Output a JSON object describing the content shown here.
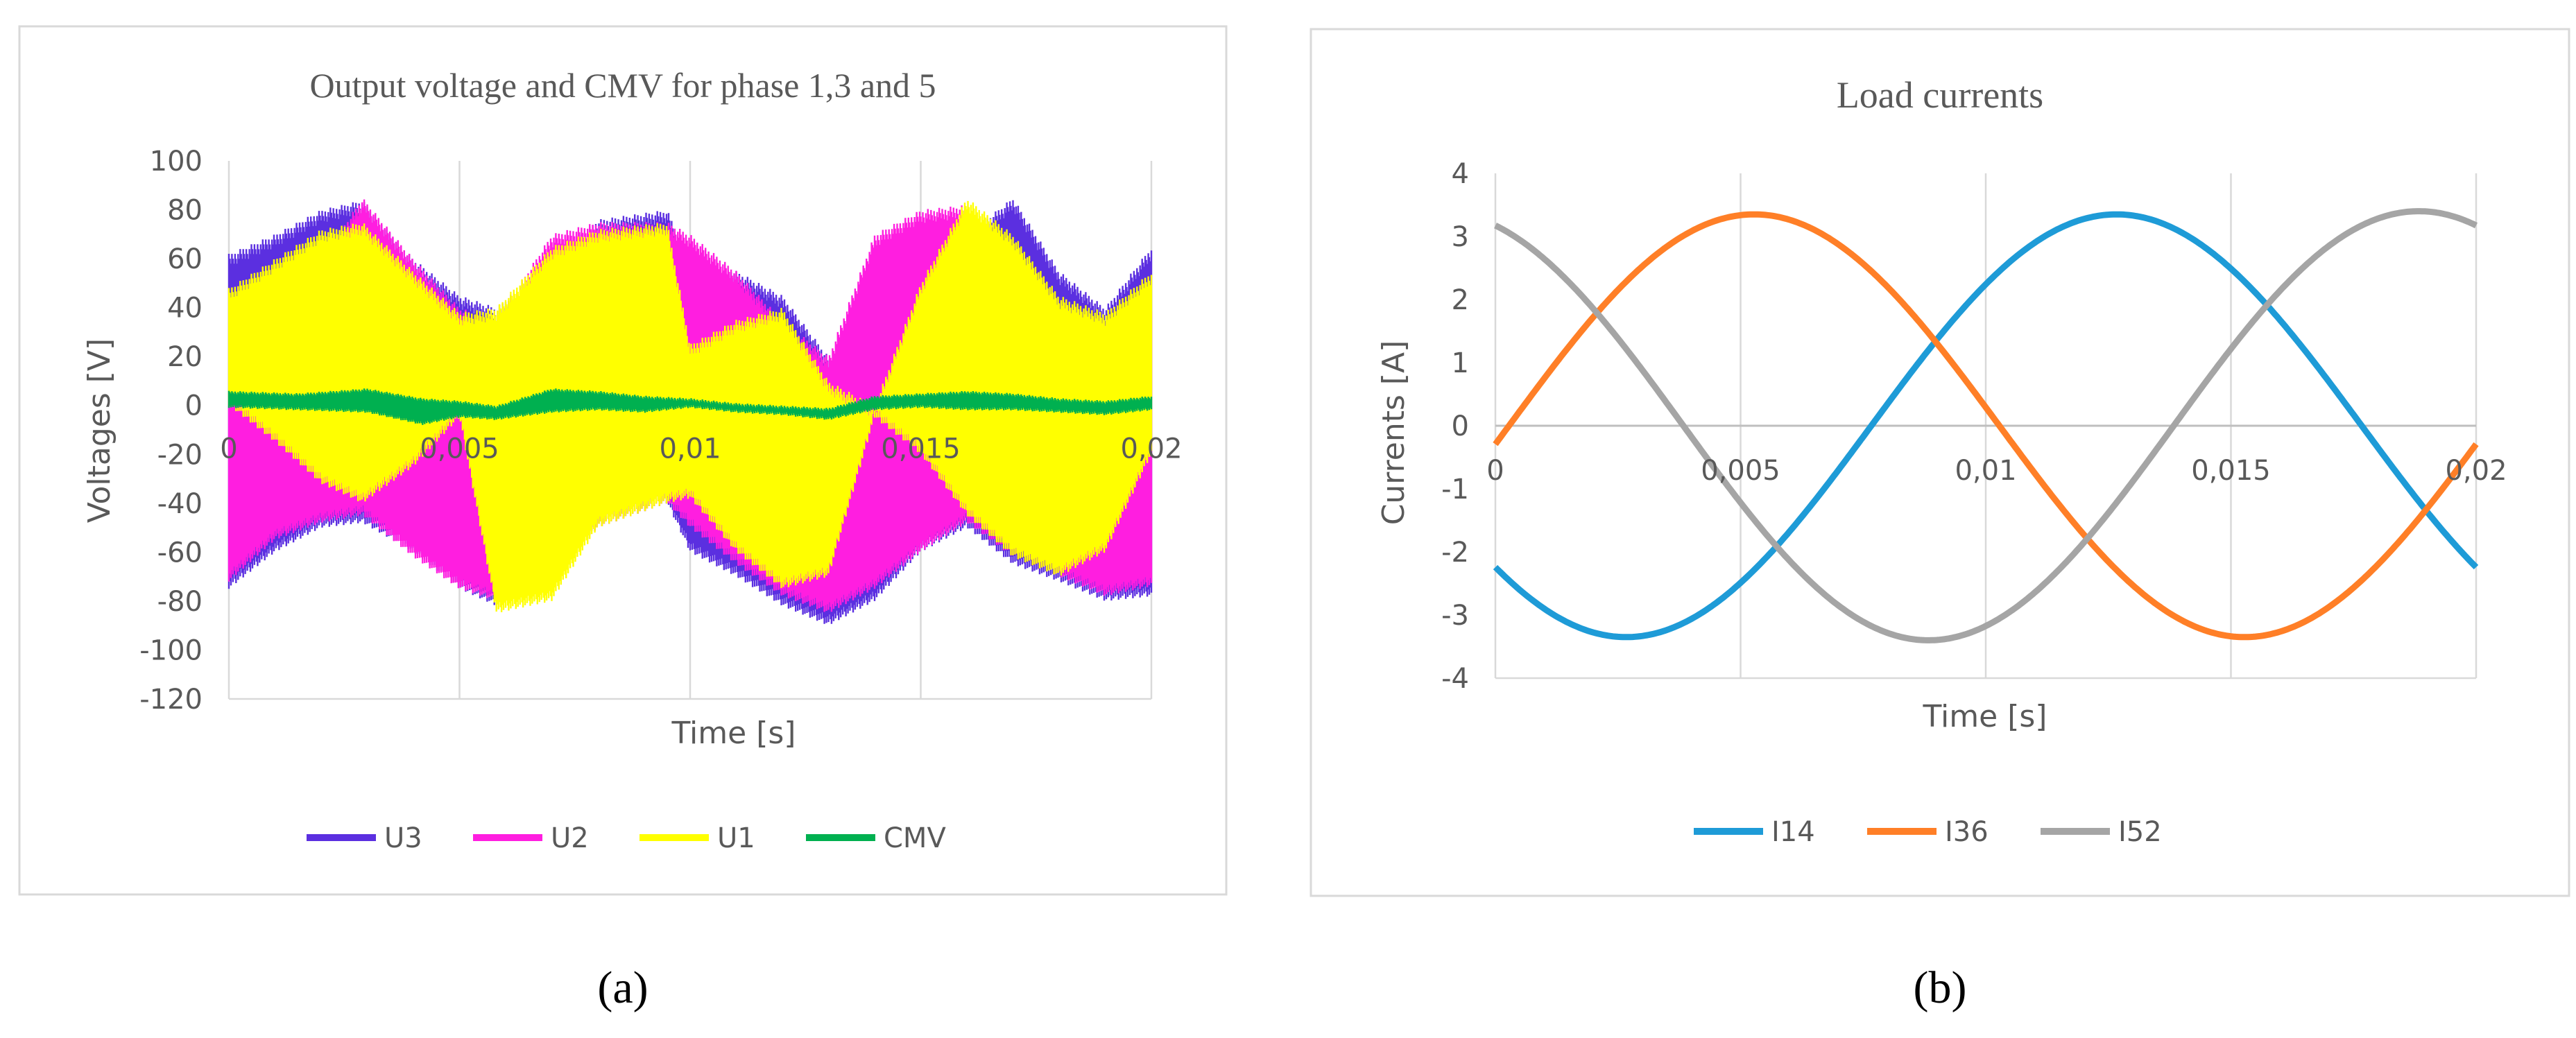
{
  "captions": [
    "(a)",
    "(b)"
  ],
  "chart_data": [
    {
      "type": "line",
      "title": "Output voltage and CMV for phase 1,3 and 5",
      "xlabel": "Time [s]",
      "ylabel": "Voltages [V]",
      "xlim": [
        0,
        0.02
      ],
      "ylim": [
        -120,
        100
      ],
      "x_ticks": [
        "0",
        "0,005",
        "0,01",
        "0,015",
        "0,02"
      ],
      "y_ticks": [
        "100",
        "80",
        "60",
        "40",
        "20",
        "0",
        "-20",
        "-40",
        "-60",
        "-80",
        "-100",
        "-120"
      ],
      "grid": "vertical",
      "legend": "bottom",
      "series": [
        {
          "name": "U3",
          "color": "#5b2fe0",
          "x": [
            0,
            0.001,
            0.002,
            0.0029,
            0.004,
            0.005,
            0.0058,
            0.007,
            0.008,
            0.0095,
            0.01,
            0.011,
            0.012,
            0.013,
            0.014,
            0.015,
            0.016,
            0.017,
            0.018,
            0.019,
            0.02
          ],
          "upper": [
            62,
            70,
            80,
            84,
            60,
            45,
            40,
            60,
            76,
            80,
            60,
            55,
            45,
            20,
            -5,
            50,
            70,
            85,
            55,
            40,
            65
          ],
          "lower": [
            -75,
            -60,
            -50,
            -48,
            -60,
            -75,
            -82,
            -70,
            -50,
            -40,
            -60,
            -70,
            -82,
            -90,
            -80,
            -60,
            -50,
            -65,
            -72,
            -80,
            -78
          ]
        },
        {
          "name": "U2",
          "color": "#ff1ee0",
          "x": [
            0,
            0.001,
            0.002,
            0.0029,
            0.004,
            0.005,
            0.0058,
            0.007,
            0.008,
            0.0095,
            0.01,
            0.011,
            0.012,
            0.013,
            0.014,
            0.015,
            0.016,
            0.017,
            0.018,
            0.019,
            0.02
          ],
          "upper": [
            5,
            15,
            60,
            85,
            60,
            40,
            35,
            70,
            75,
            75,
            70,
            55,
            35,
            20,
            70,
            80,
            82,
            60,
            40,
            35,
            40
          ],
          "lower": [
            -72,
            -55,
            -48,
            -45,
            -62,
            -75,
            -80,
            -68,
            -50,
            -40,
            -50,
            -65,
            -78,
            -85,
            -75,
            -60,
            -48,
            -62,
            -70,
            -78,
            -74
          ]
        },
        {
          "name": "U1",
          "color": "#ffff00",
          "x": [
            0,
            0.001,
            0.002,
            0.0029,
            0.004,
            0.005,
            0.0058,
            0.007,
            0.008,
            0.0095,
            0.01,
            0.011,
            0.012,
            0.013,
            0.014,
            0.015,
            0.016,
            0.017,
            0.018,
            0.019,
            0.02
          ],
          "upper": [
            48,
            60,
            72,
            75,
            55,
            38,
            40,
            65,
            72,
            75,
            25,
            35,
            40,
            10,
            0,
            50,
            85,
            70,
            45,
            38,
            55
          ],
          "lower": [
            0,
            -15,
            -32,
            -40,
            -25,
            -5,
            -85,
            -80,
            -50,
            -40,
            -38,
            -60,
            -75,
            -70,
            -5,
            -20,
            -45,
            -62,
            -70,
            -60,
            -20
          ]
        },
        {
          "name": "CMV",
          "color": "#00b050",
          "x": [
            0,
            0.0015,
            0.003,
            0.0042,
            0.005,
            0.0058,
            0.007,
            0.008,
            0.009,
            0.01,
            0.011,
            0.012,
            0.013,
            0.014,
            0.015,
            0.016,
            0.017,
            0.018,
            0.019,
            0.02
          ],
          "upper": [
            6,
            5,
            7,
            3,
            2,
            0,
            7,
            6,
            4,
            3,
            1,
            0,
            -1,
            4,
            5,
            6,
            5,
            3,
            2,
            4
          ],
          "lower": [
            -1,
            -2,
            -3,
            -8,
            -5,
            -6,
            -3,
            -2,
            -3,
            -1,
            -3,
            -4,
            -6,
            -2,
            -1,
            -2,
            -2,
            -3,
            -4,
            -2
          ]
        }
      ]
    },
    {
      "type": "line",
      "title": "Load currents",
      "xlabel": "Time [s]",
      "ylabel": "Currents [A]",
      "xlim": [
        0,
        0.02
      ],
      "ylim": [
        -4,
        4
      ],
      "x_ticks": [
        "0",
        "0,005",
        "0,01",
        "0,015",
        "0,02"
      ],
      "y_ticks": [
        "4",
        "3",
        "2",
        "1",
        "0",
        "-1",
        "-2",
        "-3",
        "-4"
      ],
      "grid": "vertical",
      "legend": "bottom",
      "series": [
        {
          "name": "I14",
          "color": "#1e9bd7",
          "amplitude": 3.35,
          "phase_deg": -138
        },
        {
          "name": "I36",
          "color": "#ff7f27",
          "amplitude": 3.35,
          "phase_deg": -5
        },
        {
          "name": "I52",
          "color": "#a5a5a5",
          "amplitude": 3.4,
          "phase_deg": 111
        }
      ]
    }
  ]
}
